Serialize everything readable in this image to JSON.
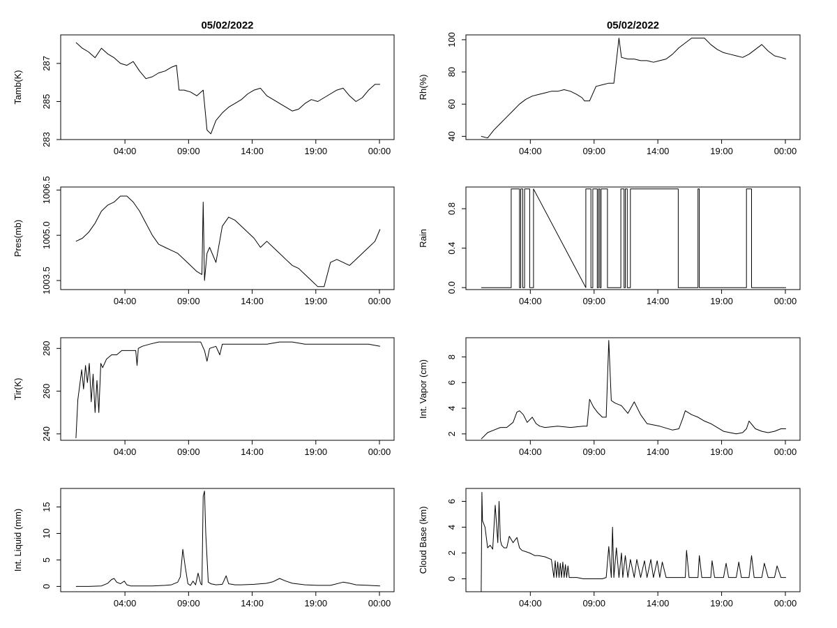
{
  "chart_data": [
    {
      "type": "line",
      "title": "05/02/2022",
      "ylabel": "Tamb(K)",
      "xticks": [
        "04:00",
        "09:00",
        "14:00",
        "19:00",
        "00:00"
      ],
      "yticks": [
        "283",
        "285",
        "287"
      ],
      "ylim": [
        283,
        288.5
      ],
      "x": [
        0.0,
        0.5,
        1.0,
        1.5,
        2.0,
        2.5,
        3.0,
        3.5,
        4.0,
        4.5,
        5.0,
        5.5,
        6.0,
        6.5,
        7.0,
        7.5,
        7.9,
        8.1,
        8.5,
        9.0,
        9.5,
        10.0,
        10.3,
        10.6,
        11.0,
        11.5,
        12.0,
        12.5,
        13.0,
        13.5,
        14.0,
        14.5,
        15.0,
        15.5,
        16.0,
        16.5,
        17.0,
        17.5,
        18.0,
        18.5,
        19.0,
        19.5,
        20.0,
        20.5,
        21.0,
        21.5,
        22.0,
        22.5,
        23.0,
        23.5,
        23.9
      ],
      "values": [
        288.1,
        287.8,
        287.6,
        287.3,
        287.8,
        287.5,
        287.3,
        287.0,
        286.9,
        287.1,
        286.6,
        286.2,
        286.3,
        286.5,
        286.6,
        286.8,
        286.9,
        285.6,
        285.6,
        285.5,
        285.3,
        285.6,
        283.5,
        283.3,
        284.0,
        284.4,
        284.7,
        284.9,
        285.1,
        285.4,
        285.6,
        285.7,
        285.3,
        285.1,
        284.9,
        284.7,
        284.5,
        284.6,
        284.9,
        285.1,
        285.0,
        285.2,
        285.4,
        285.6,
        285.7,
        285.3,
        285.0,
        285.2,
        285.6,
        285.9,
        285.9
      ]
    },
    {
      "type": "line",
      "title": "05/02/2022",
      "ylabel": "Rh(%)",
      "xticks": [
        "04:00",
        "09:00",
        "14:00",
        "19:00",
        "00:00"
      ],
      "yticks": [
        "40",
        "60",
        "80",
        "100"
      ],
      "ylim": [
        38,
        103
      ],
      "x": [
        0.0,
        0.5,
        1.0,
        1.5,
        2.0,
        2.5,
        3.0,
        3.5,
        4.0,
        4.5,
        5.0,
        5.5,
        6.0,
        6.5,
        7.0,
        7.5,
        7.9,
        8.1,
        8.5,
        9.0,
        9.5,
        10.0,
        10.4,
        10.8,
        11.0,
        11.5,
        12.0,
        12.5,
        13.0,
        13.5,
        14.0,
        14.5,
        15.0,
        15.5,
        16.0,
        16.5,
        17.0,
        17.5,
        18.0,
        18.5,
        19.0,
        19.5,
        20.0,
        20.5,
        21.0,
        21.5,
        22.0,
        22.5,
        23.0,
        23.5,
        23.9
      ],
      "values": [
        40,
        39,
        44,
        48,
        52,
        56,
        60,
        63,
        65,
        66,
        67,
        68,
        68,
        69,
        68,
        66,
        64,
        62,
        62,
        71,
        72,
        73,
        73,
        101,
        89,
        88,
        88,
        87,
        87,
        86,
        87,
        88,
        91,
        95,
        98,
        101,
        101,
        101,
        97,
        94,
        92,
        91,
        90,
        89,
        91,
        94,
        97,
        93,
        90,
        89,
        88
      ]
    },
    {
      "type": "line",
      "ylabel": "Pres(mb)",
      "xticks": [
        "04:00",
        "09:00",
        "14:00",
        "19:00",
        "00:00"
      ],
      "yticks": [
        "1003.5",
        "1005.0",
        "1006.5"
      ],
      "ylim": [
        1003.2,
        1006.6
      ],
      "x": [
        0.0,
        0.5,
        1.0,
        1.5,
        2.0,
        2.5,
        3.0,
        3.5,
        4.0,
        4.5,
        5.0,
        5.5,
        6.0,
        6.5,
        7.0,
        7.5,
        8.0,
        8.5,
        9.0,
        9.5,
        9.9,
        10.0,
        10.1,
        10.3,
        10.5,
        11.0,
        11.5,
        12.0,
        12.5,
        13.0,
        13.5,
        14.0,
        14.5,
        15.0,
        15.5,
        16.0,
        16.5,
        17.0,
        17.5,
        18.0,
        18.5,
        19.0,
        19.5,
        20.0,
        20.5,
        21.0,
        21.5,
        22.0,
        22.5,
        23.0,
        23.5,
        23.9
      ],
      "values": [
        1004.8,
        1004.9,
        1005.1,
        1005.4,
        1005.8,
        1006.0,
        1006.1,
        1006.3,
        1006.3,
        1006.1,
        1005.8,
        1005.4,
        1005.0,
        1004.7,
        1004.6,
        1004.5,
        1004.4,
        1004.2,
        1004.0,
        1003.8,
        1003.7,
        1006.1,
        1003.5,
        1004.4,
        1004.6,
        1004.1,
        1005.3,
        1005.6,
        1005.5,
        1005.3,
        1005.1,
        1004.9,
        1004.6,
        1004.8,
        1004.6,
        1004.4,
        1004.2,
        1004.0,
        1003.9,
        1003.7,
        1003.5,
        1003.3,
        1003.3,
        1004.1,
        1004.2,
        1004.1,
        1004.0,
        1004.2,
        1004.4,
        1004.6,
        1004.8,
        1005.2
      ]
    },
    {
      "type": "line",
      "ylabel": "Rain",
      "xticks": [
        "04:00",
        "09:00",
        "14:00",
        "19:00",
        "00:00"
      ],
      "yticks": [
        "0.0",
        "0.4",
        "0.8"
      ],
      "ylim": [
        -0.02,
        1.02
      ],
      "x": [
        0.0,
        2.35,
        2.35,
        3.0,
        3.0,
        3.1,
        3.1,
        3.25,
        3.25,
        3.4,
        3.4,
        3.8,
        3.8,
        4.1,
        4.1,
        8.2,
        8.2,
        8.6,
        8.6,
        8.75,
        8.75,
        9.1,
        9.1,
        9.2,
        9.2,
        9.3,
        9.3,
        9.4,
        9.4,
        9.9,
        9.9,
        10.95,
        10.95,
        11.2,
        11.2,
        11.3,
        11.3,
        11.45,
        11.45,
        11.7,
        11.7,
        15.45,
        15.45,
        17.0,
        17.0,
        17.1,
        17.1,
        20.8,
        20.8,
        21.2,
        21.2,
        23.9
      ],
      "values": [
        0,
        0,
        1,
        1,
        0,
        0,
        1,
        1,
        0,
        0,
        1,
        1,
        0,
        0,
        1,
        0,
        1,
        1,
        0,
        0,
        1,
        1,
        0,
        0,
        1,
        1,
        0,
        0,
        1,
        1,
        0,
        0,
        1,
        1,
        0,
        0,
        1,
        1,
        0,
        0,
        1,
        1,
        0,
        0,
        1,
        1,
        0,
        0,
        1,
        1,
        0,
        0
      ]
    },
    {
      "type": "line",
      "ylabel": "Tir(K)",
      "xticks": [
        "04:00",
        "09:00",
        "14:00",
        "19:00",
        "00:00"
      ],
      "yticks": [
        "240",
        "260",
        "280"
      ],
      "ylim": [
        237,
        285
      ],
      "x": [
        0.0,
        0.15,
        0.3,
        0.45,
        0.6,
        0.75,
        0.9,
        1.05,
        1.2,
        1.35,
        1.5,
        1.65,
        1.8,
        1.95,
        2.1,
        2.4,
        2.8,
        3.2,
        3.6,
        4.0,
        4.4,
        4.7,
        4.8,
        4.9,
        5.2,
        5.8,
        6.5,
        7.0,
        8.0,
        9.0,
        9.8,
        10.1,
        10.3,
        10.5,
        11.0,
        11.3,
        11.5,
        12.0,
        13.0,
        14.0,
        15.0,
        16.0,
        17.0,
        18.0,
        19.0,
        20.0,
        21.0,
        22.0,
        23.0,
        23.9
      ],
      "values": [
        238,
        256,
        263,
        270,
        261,
        272,
        264,
        273,
        255,
        268,
        250,
        265,
        250,
        273,
        271,
        275,
        277,
        277,
        279,
        279,
        279,
        279,
        272,
        280,
        281,
        282,
        283,
        283,
        283,
        283,
        283,
        279,
        274,
        280,
        281,
        277,
        282,
        282,
        282,
        282,
        282,
        283,
        283,
        282,
        282,
        282,
        282,
        282,
        282,
        281
      ]
    },
    {
      "type": "line",
      "ylabel": "Int. Vapor (cm)",
      "xticks": [
        "04:00",
        "09:00",
        "14:00",
        "19:00",
        "00:00"
      ],
      "yticks": [
        "2",
        "4",
        "6",
        "8"
      ],
      "ylim": [
        1.5,
        9.5
      ],
      "x": [
        0.0,
        0.5,
        1.0,
        1.5,
        2.0,
        2.5,
        2.8,
        3.0,
        3.3,
        3.6,
        4.0,
        4.3,
        4.6,
        5.0,
        6.0,
        7.0,
        8.0,
        8.3,
        8.5,
        8.8,
        9.1,
        9.5,
        9.8,
        10.0,
        10.2,
        10.5,
        11.0,
        11.5,
        12.0,
        12.5,
        13.0,
        14.0,
        15.0,
        15.5,
        15.8,
        16.0,
        16.5,
        17.0,
        17.5,
        18.0,
        18.5,
        19.0,
        19.5,
        20.0,
        20.5,
        20.8,
        21.0,
        21.5,
        22.0,
        22.5,
        23.0,
        23.5,
        23.9
      ],
      "values": [
        1.6,
        2.1,
        2.3,
        2.5,
        2.5,
        2.9,
        3.7,
        3.8,
        3.5,
        2.9,
        3.3,
        2.8,
        2.6,
        2.5,
        2.6,
        2.5,
        2.6,
        2.6,
        4.7,
        4.1,
        3.7,
        3.3,
        3.3,
        9.3,
        4.6,
        4.4,
        4.2,
        3.6,
        4.5,
        3.5,
        2.8,
        2.6,
        2.3,
        2.4,
        3.2,
        3.8,
        3.5,
        3.3,
        3.0,
        2.8,
        2.5,
        2.2,
        2.1,
        2.0,
        2.1,
        2.4,
        3.0,
        2.4,
        2.2,
        2.1,
        2.2,
        2.4,
        2.4
      ]
    },
    {
      "type": "line",
      "ylabel": "Int. Liquid (mm)",
      "xticks": [
        "04:00",
        "09:00",
        "14:00",
        "19:00",
        "00:00"
      ],
      "yticks": [
        "0",
        "5",
        "10",
        "15"
      ],
      "ylim": [
        -1,
        18.5
      ],
      "x": [
        0.0,
        1.0,
        2.0,
        2.5,
        2.8,
        3.0,
        3.2,
        3.5,
        3.8,
        4.0,
        4.3,
        5.0,
        6.0,
        7.0,
        7.5,
        8.0,
        8.2,
        8.4,
        8.6,
        8.8,
        9.0,
        9.2,
        9.4,
        9.6,
        9.8,
        9.9,
        10.0,
        10.1,
        10.2,
        10.4,
        10.6,
        11.0,
        11.5,
        11.8,
        12.0,
        12.5,
        13.0,
        14.0,
        14.5,
        15.0,
        15.5,
        16.0,
        16.5,
        17.0,
        18.0,
        19.0,
        20.0,
        21.0,
        21.5,
        22.0,
        23.0,
        23.9
      ],
      "values": [
        0,
        0,
        0.1,
        0.6,
        1.3,
        1.5,
        0.8,
        0.5,
        1.0,
        0.3,
        0.1,
        0.1,
        0.1,
        0.2,
        0.3,
        0.8,
        1.8,
        7.0,
        3.5,
        0.5,
        0.2,
        1.0,
        0.3,
        2.5,
        0.5,
        0.3,
        17.0,
        18.0,
        10.0,
        0.8,
        0.5,
        0.3,
        0.4,
        2.0,
        0.5,
        0.3,
        0.3,
        0.4,
        0.5,
        0.6,
        0.9,
        1.5,
        1.0,
        0.6,
        0.3,
        0.2,
        0.2,
        0.8,
        0.6,
        0.3,
        0.2,
        0.1
      ]
    },
    {
      "type": "line",
      "ylabel": "Cloud Base (km)",
      "xticks": [
        "04:00",
        "09:00",
        "14:00",
        "19:00",
        "00:00"
      ],
      "yticks": [
        "0",
        "2",
        "4",
        "6"
      ],
      "ylim": [
        -1.0,
        7.0
      ],
      "x": [
        0.0,
        0.05,
        0.1,
        0.3,
        0.5,
        0.7,
        0.9,
        1.1,
        1.3,
        1.4,
        1.5,
        1.6,
        1.7,
        1.8,
        2.0,
        2.2,
        2.5,
        2.8,
        3.0,
        3.2,
        3.5,
        3.8,
        4.0,
        4.2,
        4.5,
        5.0,
        5.5,
        5.7,
        5.8,
        5.9,
        6.0,
        6.1,
        6.2,
        6.3,
        6.4,
        6.5,
        6.6,
        6.7,
        6.8,
        6.9,
        7.0,
        7.5,
        8.0,
        8.5,
        9.0,
        9.5,
        9.8,
        10.0,
        10.2,
        10.3,
        10.4,
        10.6,
        10.8,
        11.0,
        11.1,
        11.3,
        11.5,
        11.7,
        12.0,
        12.2,
        12.5,
        12.8,
        13.0,
        13.3,
        13.5,
        13.8,
        14.0,
        14.2,
        14.5,
        15.0,
        15.5,
        16.0,
        16.1,
        16.3,
        17.0,
        17.1,
        17.3,
        18.0,
        18.1,
        18.3,
        19.0,
        19.2,
        19.4,
        20.0,
        20.2,
        20.4,
        21.0,
        21.2,
        21.4,
        22.0,
        22.2,
        22.5,
        23.0,
        23.2,
        23.5,
        23.9
      ],
      "values": [
        -1.0,
        6.7,
        4.5,
        4.0,
        2.4,
        2.6,
        2.3,
        5.7,
        2.8,
        6.0,
        3.0,
        2.6,
        2.5,
        2.4,
        2.4,
        3.3,
        2.8,
        3.2,
        2.4,
        2.2,
        2.1,
        2.0,
        1.9,
        1.8,
        1.8,
        1.7,
        1.5,
        0.1,
        1.4,
        0.1,
        1.3,
        0.1,
        1.2,
        0.1,
        1.3,
        0.1,
        1.1,
        0.1,
        1.0,
        0.1,
        0.1,
        0.1,
        0.0,
        0.0,
        0.0,
        0.0,
        0.1,
        2.5,
        0.1,
        4.0,
        0.1,
        2.4,
        0.1,
        2.0,
        0.1,
        1.8,
        0.1,
        1.5,
        0.1,
        1.5,
        0.1,
        1.4,
        0.1,
        1.5,
        0.1,
        1.4,
        0.1,
        1.3,
        0.1,
        0.1,
        0.1,
        0.1,
        2.2,
        0.1,
        0.1,
        1.8,
        0.1,
        0.1,
        1.4,
        0.1,
        0.1,
        1.2,
        0.1,
        0.1,
        1.3,
        0.1,
        0.1,
        1.8,
        0.1,
        0.1,
        1.2,
        0.1,
        0.1,
        1.0,
        0.1,
        0.1
      ]
    }
  ]
}
